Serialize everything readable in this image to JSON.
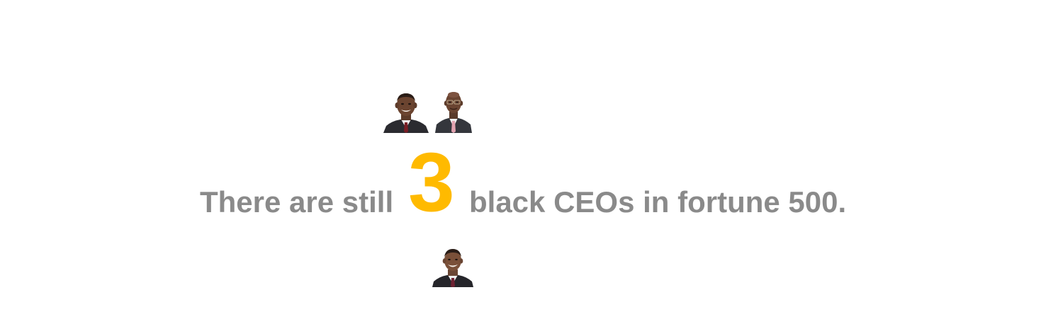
{
  "headline": {
    "before": "There are still",
    "number": "3",
    "after": "black CEOs in fortune 500."
  },
  "colors": {
    "text": "#8a8a8a",
    "accent": "#ffba00",
    "background": "#ffffff"
  },
  "portraits": [
    {
      "icon": "ceo-portrait-1"
    },
    {
      "icon": "ceo-portrait-2"
    },
    {
      "icon": "ceo-portrait-3"
    }
  ]
}
